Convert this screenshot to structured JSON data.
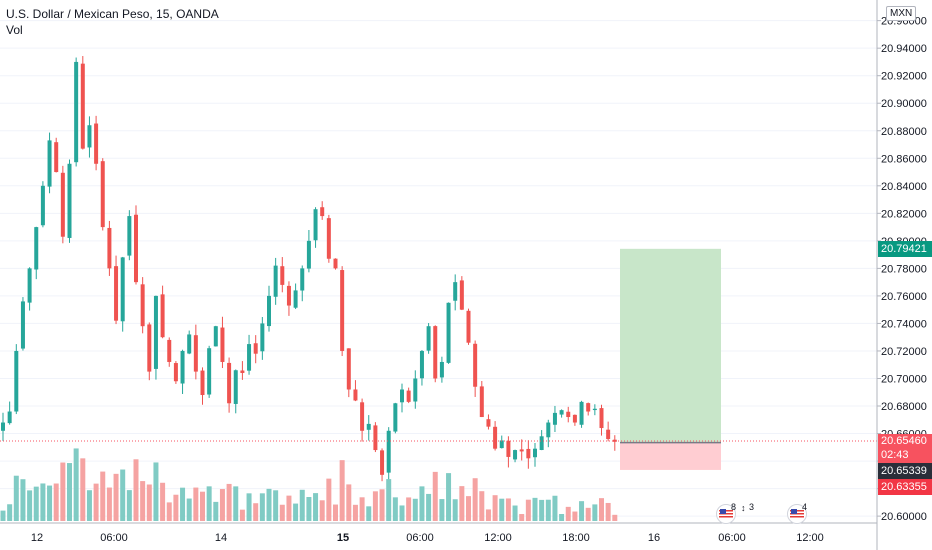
{
  "legend": {
    "symbol_title": "U.S. Dollar / Mexican Peso, 15, OANDA",
    "volume_label": "Vol"
  },
  "axis": {
    "currency": "MXN",
    "price_ticks": [
      "20.60000",
      "20.62000",
      "20.64000",
      "20.66000",
      "20.68000",
      "20.70000",
      "20.72000",
      "20.74000",
      "20.76000",
      "20.78000",
      "20.80000",
      "20.82000",
      "20.84000",
      "20.86000",
      "20.88000",
      "20.90000",
      "20.92000",
      "20.94000",
      "20.96000"
    ],
    "time_ticks": [
      "12",
      "06:00",
      "14",
      "15",
      "06:00",
      "12:00",
      "18:00",
      "16",
      "06:00",
      "12:00"
    ]
  },
  "price_labels": {
    "target": "20.79421",
    "current": "20.65460",
    "countdown": "02:43",
    "entry": "20.65339",
    "stop": "20.63355"
  },
  "events": [
    {
      "icon": "us-flag-icon",
      "counts": [
        "8",
        "3"
      ]
    },
    {
      "icon": "us-flag-icon",
      "counts": [
        "4"
      ]
    }
  ],
  "colors": {
    "up": "#26a69a",
    "down": "#ef5350",
    "vol_up": "#80cbc4",
    "vol_down": "#f5a3a2",
    "profit_zone": "#c8e6c9",
    "loss_zone": "#ffcdd2",
    "target_label": "#089981",
    "stop_label": "#f23645",
    "current_label": "#f7525f",
    "entry_label": "#2a2e39"
  },
  "chart_data": {
    "type": "candlestick",
    "title": "U.S. Dollar / Mexican Peso, 15, OANDA",
    "ylim": [
      20.595,
      20.975
    ],
    "position": {
      "entry": 20.65339,
      "target": 20.79421,
      "stop": 20.63355
    },
    "current_price": 20.6546,
    "waypoints": [
      20.668,
      20.676,
      20.72,
      20.756,
      20.78,
      20.81,
      20.84,
      20.873,
      20.85,
      20.803,
      20.856,
      20.93,
      20.867,
      20.884,
      20.856,
      20.81,
      20.78,
      20.742,
      20.788,
      20.818,
      20.77,
      20.738,
      20.705,
      20.76,
      20.73,
      20.712,
      20.698,
      20.72,
      20.732,
      20.705,
      20.688,
      20.722,
      20.738,
      20.712,
      20.682,
      20.706,
      20.704,
      20.725,
      20.718,
      20.74,
      20.76,
      20.782,
      20.768,
      20.753,
      20.764,
      20.78,
      20.8,
      20.823,
      20.818,
      20.787,
      20.78,
      20.72,
      20.692,
      20.684,
      20.662,
      20.667,
      20.648,
      20.63,
      20.662,
      20.682,
      20.692,
      20.683,
      20.7,
      20.72,
      20.738,
      20.7,
      20.712,
      20.755,
      20.77,
      20.75,
      20.726,
      20.694,
      20.672,
      20.665,
      20.649,
      20.655,
      20.643,
      20.648,
      20.647,
      20.642,
      20.649,
      20.658,
      20.668,
      20.675,
      20.677,
      20.672,
      20.668,
      20.683,
      20.676,
      20.678,
      20.664,
      20.656,
      20.654
    ]
  }
}
